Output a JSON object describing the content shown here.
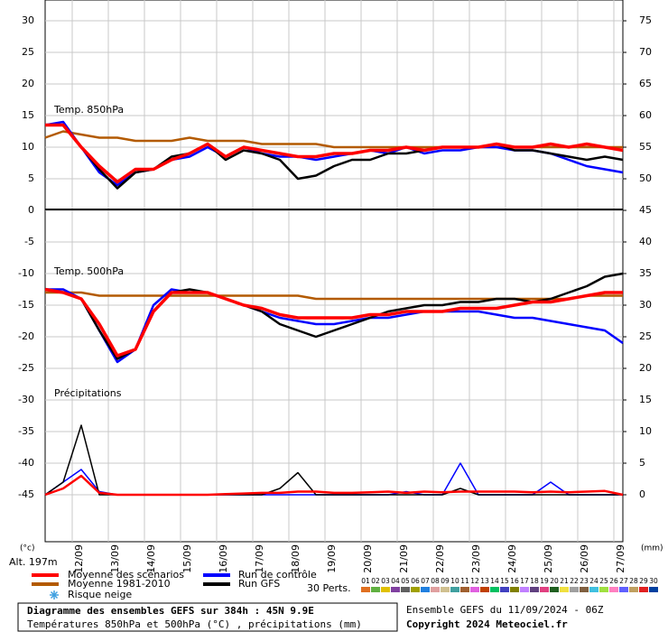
{
  "chart_data": {
    "type": "line",
    "title": "Diagramme des ensembles GEFS sur 384h : 45N 9.9E",
    "subtitle": "Températures 850hPa et 500hPa (°C) , précipitations (mm)",
    "run_info": "Ensemble GEFS du 11/09/2024 - 06Z",
    "copyright": "Copyright 2024 Meteociel.fr",
    "ylabel": "(°c)",
    "y2label": "(mm)",
    "altitude": "Alt. 197m",
    "snow_label": "Risque neige",
    "members_label": "30 Perts.",
    "panels": {
      "t850": "Temp. 850hPa",
      "t500": "Temp. 500hPa",
      "precip": "Précipitations"
    },
    "x": [
      0,
      12,
      24,
      36,
      48,
      60,
      72,
      84,
      96,
      108,
      120,
      132,
      144,
      156,
      168,
      180,
      192,
      204,
      216,
      228,
      240,
      252,
      264,
      276,
      288,
      300,
      312,
      324,
      336,
      348,
      360,
      372,
      384
    ],
    "xlim": [
      0,
      384
    ],
    "xticks": [
      {
        "value": 18,
        "label": "12/09"
      },
      {
        "value": 42,
        "label": "13/09"
      },
      {
        "value": 66,
        "label": "14/09"
      },
      {
        "value": 90,
        "label": "15/09"
      },
      {
        "value": 114,
        "label": "16/09"
      },
      {
        "value": 138,
        "label": "17/09"
      },
      {
        "value": 162,
        "label": "18/09"
      },
      {
        "value": 186,
        "label": "19/09"
      },
      {
        "value": 210,
        "label": "20/09"
      },
      {
        "value": 234,
        "label": "21/09"
      },
      {
        "value": 258,
        "label": "22/09"
      },
      {
        "value": 282,
        "label": "23/09"
      },
      {
        "value": 306,
        "label": "24/09"
      },
      {
        "value": 330,
        "label": "25/09"
      },
      {
        "value": 354,
        "label": "26/09"
      },
      {
        "value": 378,
        "label": "27/09"
      }
    ],
    "ylim": [
      -52.43,
      33.29
    ],
    "yticks": [
      30,
      25,
      20,
      15,
      10,
      5,
      0,
      -5,
      -10,
      -15,
      -20,
      -25,
      -30,
      -35,
      -40,
      -45
    ],
    "y2lim": [
      -7.43,
      78.29
    ],
    "y2ticks": [
      75,
      70,
      65,
      60,
      55,
      50,
      45,
      40,
      35,
      30,
      25,
      20,
      15,
      10,
      5,
      0
    ],
    "grid": true,
    "series": [
      {
        "name": "Moyenne des scénarios",
        "color": "#ff0000",
        "t850": [
          13.5,
          13.5,
          10,
          7,
          4.5,
          6.5,
          6.5,
          8,
          9,
          10.5,
          8.5,
          10,
          9.5,
          9,
          8.5,
          8.5,
          9,
          9,
          9.5,
          9.5,
          10,
          9.5,
          10,
          10,
          10,
          10.5,
          10,
          10,
          10.5,
          10,
          10.5,
          10,
          9.5
        ],
        "t500": [
          -12.5,
          -13,
          -14,
          -18,
          -23,
          -22,
          -16,
          -13,
          -13,
          -13,
          -14,
          -15,
          -15.5,
          -16.5,
          -17,
          -17,
          -17,
          -17,
          -16.5,
          -16.5,
          -16,
          -16,
          -16,
          -15.5,
          -15.5,
          -15.5,
          -15,
          -14.5,
          -14.5,
          -14,
          -13.5,
          -13,
          -13
        ],
        "precip": [
          0,
          1,
          3,
          0.3,
          0,
          0,
          0,
          0,
          0,
          0,
          0.1,
          0.2,
          0.3,
          0.3,
          0.5,
          0.5,
          0.3,
          0.3,
          0.4,
          0.5,
          0.3,
          0.5,
          0.4,
          0.5,
          0.5,
          0.5,
          0.5,
          0.4,
          0.5,
          0.4,
          0.5,
          0.6,
          0
        ]
      },
      {
        "name": "Moyenne 1981-2010",
        "color": "#b35a00",
        "t850": [
          11.5,
          12.5,
          12,
          11.5,
          11.5,
          11,
          11,
          11,
          11.5,
          11,
          11,
          11,
          10.5,
          10.5,
          10.5,
          10.5,
          10,
          10,
          10,
          10,
          10,
          10,
          10,
          10,
          10,
          10,
          10,
          10,
          10,
          10,
          10,
          10,
          10
        ],
        "t500": [
          -13,
          -13,
          -13,
          -13.5,
          -13.5,
          -13.5,
          -13.5,
          -13.5,
          -13.5,
          -13.5,
          -13.5,
          -13.5,
          -13.5,
          -13.5,
          -13.5,
          -14,
          -14,
          -14,
          -14,
          -14,
          -14,
          -14,
          -14,
          -14,
          -14,
          -14,
          -14,
          -14,
          -14,
          -14,
          -13.5,
          -13.5,
          -13.5
        ]
      },
      {
        "name": "Run de contrôle",
        "color": "#0000ff",
        "t850": [
          13.5,
          14,
          10,
          6,
          4,
          6,
          6.5,
          8,
          8.5,
          10,
          8.5,
          10,
          9,
          8.5,
          8.5,
          8,
          8.5,
          9,
          9.5,
          9,
          10,
          9,
          9.5,
          9.5,
          10,
          10,
          9.5,
          9.5,
          9,
          8,
          7,
          6.5,
          6
        ],
        "t500": [
          -12.5,
          -12.5,
          -14,
          -19,
          -24,
          -22,
          -15,
          -12.5,
          -13,
          -13,
          -14,
          -15,
          -16,
          -17,
          -17.5,
          -18,
          -18,
          -17.5,
          -17,
          -17,
          -16.5,
          -16,
          -16,
          -16,
          -16,
          -16.5,
          -17,
          -17,
          -17.5,
          -18,
          -18.5,
          -19,
          -21
        ],
        "precip": [
          0,
          2,
          4,
          0.5,
          0,
          0,
          0,
          0,
          0,
          0,
          0,
          0,
          0,
          0,
          0,
          0,
          0,
          0,
          0,
          0,
          0.5,
          0,
          0,
          5,
          0,
          0,
          0,
          0,
          2,
          0,
          0,
          0,
          0
        ]
      },
      {
        "name": "Run GFS",
        "color": "#000000",
        "t850": [
          13.5,
          13.5,
          10,
          6.5,
          3.5,
          6,
          6.5,
          8.5,
          9,
          10.5,
          8,
          9.5,
          9,
          8,
          5,
          5.5,
          7,
          8,
          8,
          9,
          9,
          9.5,
          10,
          10,
          10,
          10.5,
          9.5,
          9.5,
          9,
          8.5,
          8,
          8.5,
          8
        ],
        "t500": [
          -12.5,
          -13,
          -14,
          -19,
          -23.5,
          -22,
          -16,
          -13,
          -12.5,
          -13,
          -14,
          -15,
          -16,
          -18,
          -19,
          -20,
          -19,
          -18,
          -17,
          -16,
          -15.5,
          -15,
          -15,
          -14.5,
          -14.5,
          -14,
          -14,
          -14.5,
          -14,
          -13,
          -12,
          -10.5,
          -10
        ],
        "precip": [
          0,
          2,
          11,
          0,
          0,
          0,
          0,
          0,
          0,
          0,
          0,
          0,
          0,
          1,
          3.5,
          0,
          0,
          0,
          0,
          0,
          0,
          0,
          0,
          1,
          0,
          0,
          0,
          0,
          0,
          0,
          0,
          0,
          0
        ]
      }
    ],
    "members": [
      {
        "label": "01",
        "color": "#e07020"
      },
      {
        "label": "02",
        "color": "#60b040"
      },
      {
        "label": "03",
        "color": "#e0c000"
      },
      {
        "label": "04",
        "color": "#8040a0"
      },
      {
        "label": "05",
        "color": "#606060"
      },
      {
        "label": "06",
        "color": "#a0a000"
      },
      {
        "label": "07",
        "color": "#2080e0"
      },
      {
        "label": "08",
        "color": "#e0a0a0"
      },
      {
        "label": "09",
        "color": "#d0c090"
      },
      {
        "label": "10",
        "color": "#40a0a0"
      },
      {
        "label": "11",
        "color": "#a06030"
      },
      {
        "label": "12",
        "color": "#e060e0"
      },
      {
        "label": "13",
        "color": "#c04000"
      },
      {
        "label": "14",
        "color": "#00c060"
      },
      {
        "label": "15",
        "color": "#4040c0"
      },
      {
        "label": "16",
        "color": "#808000"
      },
      {
        "label": "17",
        "color": "#c080ff"
      },
      {
        "label": "18",
        "color": "#604080"
      },
      {
        "label": "19",
        "color": "#e04080"
      },
      {
        "label": "20",
        "color": "#206020"
      },
      {
        "label": "21",
        "color": "#f0e040"
      },
      {
        "label": "22",
        "color": "#a0a0a0"
      },
      {
        "label": "23",
        "color": "#806040"
      },
      {
        "label": "24",
        "color": "#40c0e0"
      },
      {
        "label": "25",
        "color": "#a0e040"
      },
      {
        "label": "26",
        "color": "#ff80c0"
      },
      {
        "label": "27",
        "color": "#6060ff"
      },
      {
        "label": "28",
        "color": "#c0a060"
      },
      {
        "label": "29",
        "color": "#e02020"
      },
      {
        "label": "30",
        "color": "#0040a0"
      }
    ]
  }
}
